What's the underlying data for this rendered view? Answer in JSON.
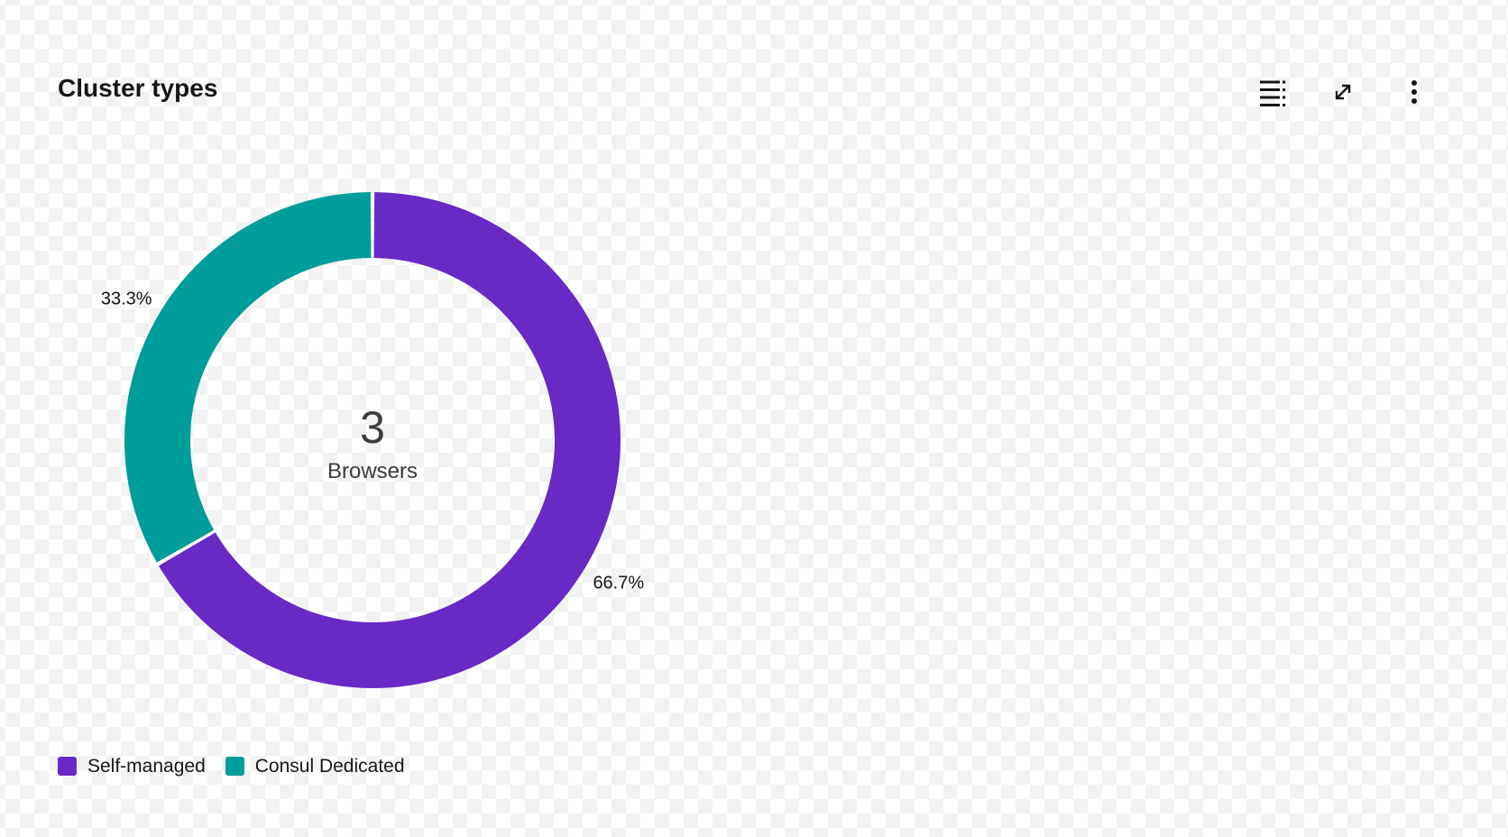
{
  "header": {
    "title": "Cluster types",
    "toolbar": {
      "data_table_button": "Show as data table",
      "expand_button": "Make fullscreen",
      "more_options_button": "More options"
    }
  },
  "chart_data": {
    "type": "pie",
    "variant": "donut",
    "title": "Cluster types",
    "categories": [
      "Self-managed",
      "Consul Dedicated"
    ],
    "values": [
      2,
      1
    ],
    "percent_labels": [
      "66.7%",
      "33.3%"
    ],
    "colors": [
      "#6929c4",
      "#009d9a"
    ],
    "start_angle_deg": 0,
    "direction": "clockwise",
    "center": {
      "number": "3",
      "label": "Browsers"
    },
    "legend_position": "bottom-left",
    "background": "transparent-checkerboard"
  },
  "legend": {
    "items": [
      {
        "label": "Self-managed",
        "color": "#6929c4"
      },
      {
        "label": "Consul Dedicated",
        "color": "#009d9a"
      }
    ]
  }
}
